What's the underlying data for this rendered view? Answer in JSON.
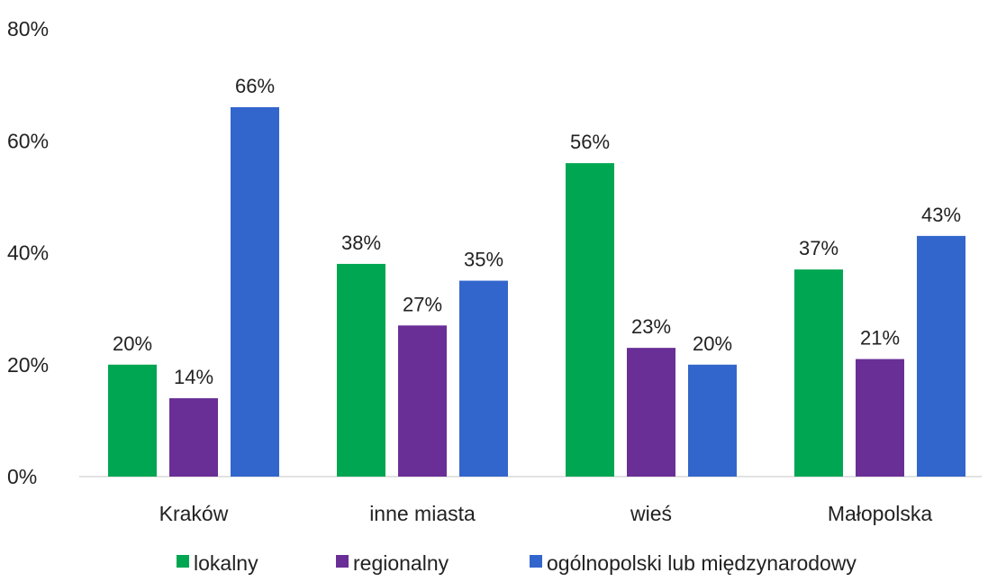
{
  "chart_data": {
    "type": "bar",
    "categories": [
      "Kraków",
      "inne miasta",
      "wieś",
      "Małopolska"
    ],
    "series": [
      {
        "name": "lokalny",
        "color": "#00a651",
        "values": [
          20,
          38,
          56,
          37
        ]
      },
      {
        "name": "regionalny",
        "color": "#6a2f97",
        "values": [
          14,
          27,
          23,
          21
        ]
      },
      {
        "name": "ogólnopolski lub międzynarodowy",
        "color": "#3366cc",
        "values": [
          66,
          35,
          20,
          43
        ]
      }
    ],
    "ylim": [
      0,
      80
    ],
    "yticks": [
      "0%",
      "20%",
      "40%",
      "60%",
      "80%"
    ],
    "ytick_values": [
      0,
      20,
      40,
      60,
      80
    ],
    "data_label_suffix": "%",
    "legend_position": "bottom",
    "grid": false
  }
}
